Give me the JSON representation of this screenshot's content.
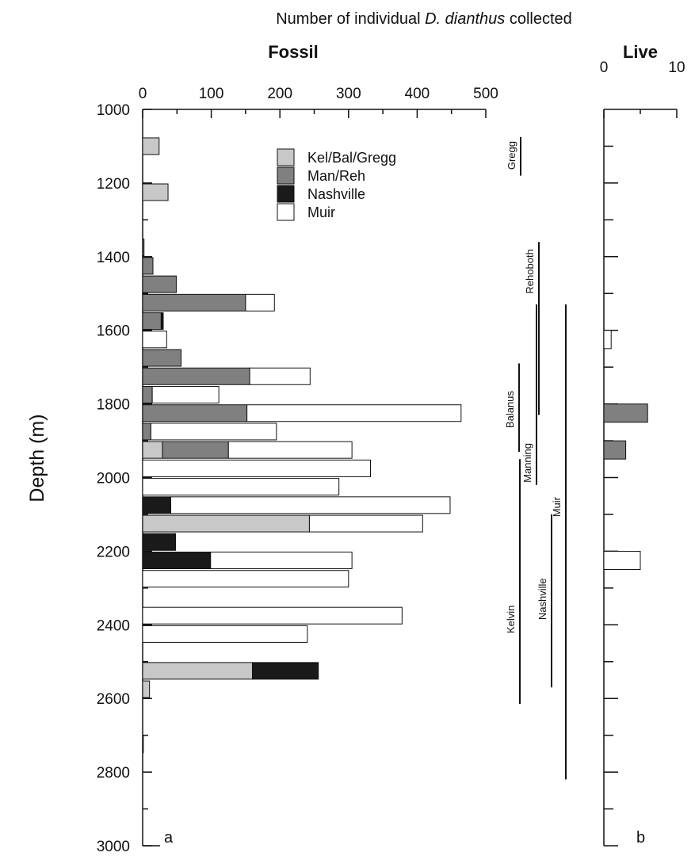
{
  "chart_data": [
    {
      "panel": "a",
      "title": "Fossil",
      "suptitle_parts": [
        "Number of individual ",
        "D. dianthus",
        " collected"
      ],
      "type": "bar",
      "orientation": "horizontal",
      "stacked": true,
      "ylabel": "Depth (m)",
      "ylim": [
        1000,
        3000
      ],
      "xlim": [
        0,
        500
      ],
      "x_ticks": [
        "0",
        "100",
        "200",
        "300",
        "400",
        "500"
      ],
      "y_ticks": [
        "1000",
        "1200",
        "1400",
        "1600",
        "1800",
        "2000",
        "2200",
        "2400",
        "2600",
        "2800",
        "3000"
      ],
      "legend_position": "top-right",
      "series": [
        {
          "name": "Kel/Bal/Gregg",
          "color": "#c8c8c8"
        },
        {
          "name": "Man/Reh",
          "color": "#808080"
        },
        {
          "name": "Nashville",
          "color": "#1a1a1a"
        },
        {
          "name": "Muir",
          "color": "#ffffff"
        }
      ],
      "bars": [
        {
          "depth": 1100,
          "values": [
            24,
            0,
            0,
            0
          ]
        },
        {
          "depth": 1225,
          "values": [
            37,
            0,
            0,
            0
          ]
        },
        {
          "depth": 1375,
          "values": [
            0,
            2,
            0,
            0
          ]
        },
        {
          "depth": 1425,
          "values": [
            0,
            15,
            0,
            0
          ]
        },
        {
          "depth": 1475,
          "values": [
            0,
            49,
            0,
            0
          ]
        },
        {
          "depth": 1525,
          "values": [
            0,
            150,
            0,
            42
          ]
        },
        {
          "depth": 1575,
          "values": [
            0,
            27,
            3,
            0
          ]
        },
        {
          "depth": 1625,
          "values": [
            0,
            0,
            0,
            35
          ]
        },
        {
          "depth": 1675,
          "values": [
            0,
            56,
            0,
            0
          ]
        },
        {
          "depth": 1725,
          "values": [
            0,
            156,
            0,
            88
          ]
        },
        {
          "depth": 1775,
          "values": [
            0,
            14,
            0,
            97
          ]
        },
        {
          "depth": 1825,
          "values": [
            0,
            152,
            0,
            312
          ]
        },
        {
          "depth": 1875,
          "values": [
            0,
            12,
            0,
            183
          ]
        },
        {
          "depth": 1925,
          "values": [
            29,
            96,
            0,
            180
          ]
        },
        {
          "depth": 1975,
          "values": [
            0,
            0,
            0,
            332
          ]
        },
        {
          "depth": 2025,
          "values": [
            0,
            0,
            0,
            286
          ]
        },
        {
          "depth": 2075,
          "values": [
            0,
            0,
            41,
            407
          ]
        },
        {
          "depth": 2125,
          "values": [
            243,
            0,
            0,
            165
          ]
        },
        {
          "depth": 2175,
          "values": [
            0,
            0,
            48,
            0
          ]
        },
        {
          "depth": 2225,
          "values": [
            0,
            0,
            99,
            206
          ]
        },
        {
          "depth": 2275,
          "values": [
            0,
            0,
            0,
            300
          ]
        },
        {
          "depth": 2375,
          "values": [
            0,
            0,
            0,
            378
          ]
        },
        {
          "depth": 2425,
          "values": [
            0,
            0,
            0,
            240
          ]
        },
        {
          "depth": 2525,
          "values": [
            160,
            0,
            96,
            0
          ]
        },
        {
          "depth": 2575,
          "values": [
            10,
            0,
            0,
            0
          ]
        },
        {
          "depth": 2725,
          "values": [
            0,
            0,
            0,
            1
          ]
        }
      ]
    },
    {
      "panel": "b",
      "title": "Live",
      "type": "bar",
      "orientation": "horizontal",
      "ylim": [
        1000,
        3000
      ],
      "xlim": [
        0,
        10
      ],
      "x_ticks": [
        "0",
        "10"
      ],
      "bars": [
        {
          "depth": 1625,
          "series": "Muir",
          "value": 1
        },
        {
          "depth": 1825,
          "series": "Man/Reh",
          "value": 6
        },
        {
          "depth": 1925,
          "series": "Man/Reh",
          "value": 3
        },
        {
          "depth": 2225,
          "series": "Muir",
          "value": 5
        }
      ]
    }
  ],
  "depth_ranges": [
    {
      "name": "Gregg",
      "start": 1075,
      "end": 1180
    },
    {
      "name": "Rehoboth",
      "start": 1360,
      "end": 1830
    },
    {
      "name": "Balanus",
      "start": 1690,
      "end": 1930
    },
    {
      "name": "Manning",
      "start": 1530,
      "end": 2020
    },
    {
      "name": "Muir",
      "start": 1530,
      "end": 2820
    },
    {
      "name": "Kelvin",
      "start": 1950,
      "end": 2615
    },
    {
      "name": "Nashville",
      "start": 2100,
      "end": 2570
    }
  ]
}
